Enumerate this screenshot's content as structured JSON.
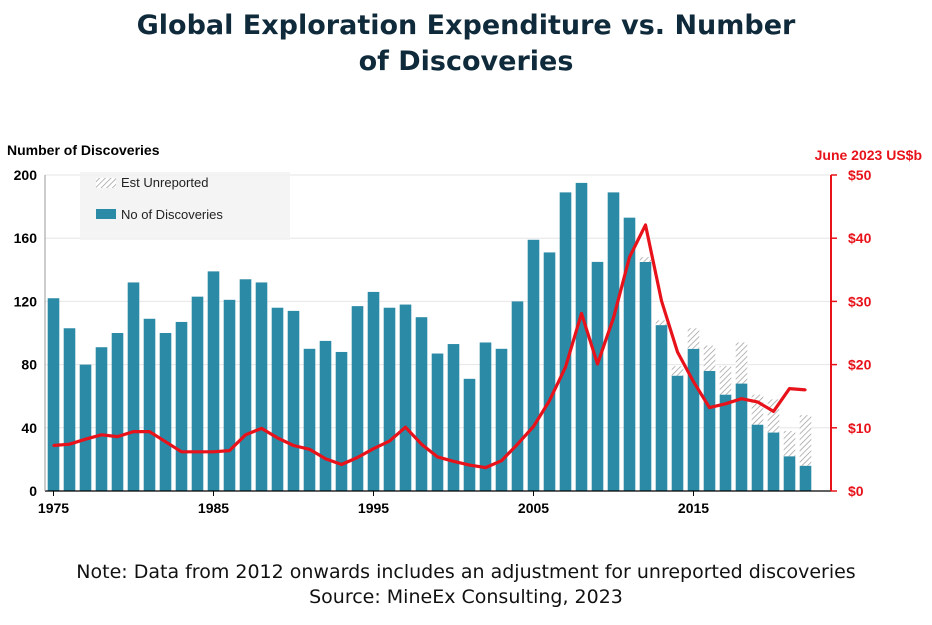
{
  "title_lines": [
    "Global Exploration Expenditure vs. Number",
    "of Discoveries"
  ],
  "notes": [
    "Note: Data from 2012 onwards includes an adjustment for unreported discoveries",
    "Source: MineEx Consulting, 2023"
  ],
  "colors": {
    "bar": "#2b8aa6",
    "line": "#e8121a",
    "hatch": "#9a9a9a",
    "title": "#0f2a3a",
    "right_axis": "#e8121a"
  },
  "chart_data": {
    "type": "bar",
    "title": "Global Exploration Expenditure vs. Number of Discoveries",
    "ylabel_left": "Number of Discoveries",
    "ylabel_right": "June 2023 US$b",
    "x_ticks": [
      "1975",
      "1985",
      "1995",
      "2005",
      "2015"
    ],
    "y_left_ticks": [
      "0",
      "40",
      "80",
      "120",
      "160",
      "200"
    ],
    "y_right_ticks": [
      "$0",
      "$10",
      "$20",
      "$30",
      "$40",
      "$50"
    ],
    "ylim_left": [
      0,
      200
    ],
    "ylim_right": [
      0,
      50
    ],
    "grid": true,
    "legend_position": "top-left",
    "legend": [
      "Est Unreported",
      "No of Discoveries"
    ],
    "years": [
      1975,
      1976,
      1977,
      1978,
      1979,
      1980,
      1981,
      1982,
      1983,
      1984,
      1985,
      1986,
      1987,
      1988,
      1989,
      1990,
      1991,
      1992,
      1993,
      1994,
      1995,
      1996,
      1997,
      1998,
      1999,
      2000,
      2001,
      2002,
      2003,
      2004,
      2005,
      2006,
      2007,
      2008,
      2009,
      2010,
      2011,
      2012,
      2013,
      2014,
      2015,
      2016,
      2017,
      2018,
      2019,
      2020,
      2021,
      2022
    ],
    "series": [
      {
        "name": "No of Discoveries",
        "type": "bar",
        "values": [
          122,
          103,
          80,
          91,
          100,
          132,
          109,
          100,
          107,
          123,
          139,
          121,
          134,
          132,
          116,
          114,
          90,
          95,
          88,
          117,
          126,
          116,
          118,
          110,
          87,
          93,
          71,
          94,
          90,
          120,
          159,
          151,
          189,
          195,
          145,
          189,
          173,
          145,
          105,
          73,
          90,
          76,
          61,
          68,
          42,
          37,
          22,
          16
        ]
      },
      {
        "name": "Est Unreported",
        "type": "stacked-bar",
        "values": [
          0,
          0,
          0,
          0,
          0,
          0,
          0,
          0,
          0,
          0,
          0,
          0,
          0,
          0,
          0,
          0,
          0,
          0,
          0,
          0,
          0,
          0,
          0,
          0,
          0,
          0,
          0,
          0,
          0,
          0,
          0,
          0,
          0,
          0,
          0,
          0,
          0,
          3,
          3,
          6,
          13,
          16,
          18,
          26,
          19,
          21,
          16,
          32
        ]
      },
      {
        "name": "June 2023 US$b",
        "type": "line",
        "axis": "right",
        "values": [
          7.2,
          7.4,
          8.2,
          8.9,
          8.6,
          9.4,
          9.4,
          7.8,
          6.2,
          6.2,
          6.2,
          6.4,
          8.9,
          9.9,
          8.4,
          7.2,
          6.6,
          5.1,
          4.2,
          5.3,
          6.7,
          7.9,
          10.1,
          7.4,
          5.4,
          4.7,
          4.1,
          3.7,
          4.8,
          7.4,
          10.2,
          14.3,
          19.6,
          28.1,
          20.1,
          27.4,
          37.0,
          42.1,
          30.1,
          22.0,
          17.3,
          13.2,
          13.8,
          14.6,
          14.1,
          12.6,
          16.2,
          16.0
        ]
      }
    ]
  }
}
